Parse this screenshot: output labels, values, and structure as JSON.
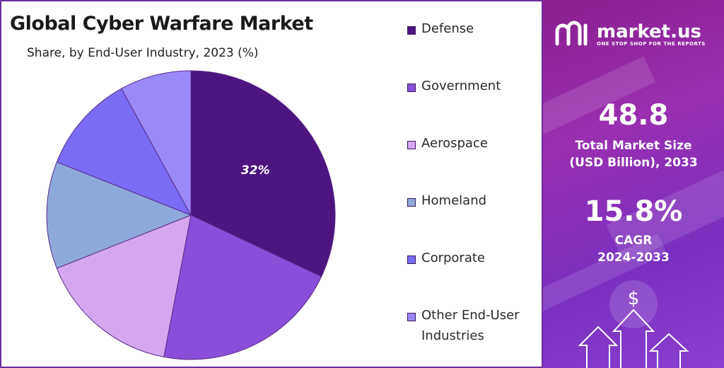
{
  "chart_data": {
    "type": "pie",
    "title": "Global Cyber Warfare Market",
    "subtitle": "Share, by End-User Industry, 2023 (%)",
    "categories": [
      "Defense",
      "Government",
      "Aerospace",
      "Homeland",
      "Corporate",
      "Other End-User Industries"
    ],
    "legend_lines": [
      [
        "Defense"
      ],
      [
        "Government"
      ],
      [
        "Aerospace"
      ],
      [
        "Homeland"
      ],
      [
        "Corporate"
      ],
      [
        "Other End-User",
        "Industries"
      ]
    ],
    "values": [
      32,
      21,
      16,
      12,
      11,
      8
    ],
    "data_labels": [
      "32%",
      "",
      "",
      "",
      "",
      ""
    ],
    "colors": [
      "#4d1580",
      "#8a4fd8",
      "#d4a8f0",
      "#8fa8dc",
      "#7a6cf5",
      "#9a8af8"
    ],
    "legend_position": "right"
  },
  "brand": {
    "name": "market.us",
    "tagline": "ONE STOP SHOP FOR THE REPORTS",
    "logo_icon": "market-us-logo-icon"
  },
  "stats": {
    "market_size_value": "48.8",
    "market_size_label_1": "Total Market Size",
    "market_size_label_2": "(USD Billion), 2033",
    "cagr_value": "15.8%",
    "cagr_label_1": "CAGR",
    "cagr_label_2": "2024-2033"
  },
  "decor": {
    "dollar_symbol": "$"
  }
}
